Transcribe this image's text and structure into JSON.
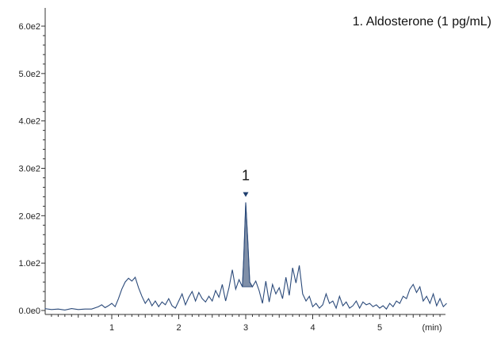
{
  "chart_data": {
    "type": "line",
    "title": "",
    "xlabel": "",
    "ylabel": "",
    "x_unit_label": "(min)",
    "xlim": [
      0,
      6.0
    ],
    "ylim": [
      -10,
      600
    ],
    "x_ticks": [
      1,
      2,
      3,
      4,
      5
    ],
    "x_tick_labels": [
      "1",
      "2",
      "3",
      "4",
      "5"
    ],
    "y_ticks": [
      0,
      100,
      200,
      300,
      400,
      500,
      600
    ],
    "y_tick_labels": [
      "0.0e0",
      "1.0e2",
      "2.0e2",
      "3.0e2",
      "4.0e2",
      "5.0e2",
      "6.0e2"
    ],
    "annotation": "1. Aldosterone (1 pg/mL)",
    "colors": {
      "line": "#2b4a7a",
      "peak_fill": "#7f8fa8",
      "marker": "#1f3f6e"
    },
    "series": [
      {
        "x": [
          0.0,
          0.1,
          0.2,
          0.3,
          0.4,
          0.5,
          0.6,
          0.7,
          0.8,
          0.85,
          0.9,
          0.95,
          1.0,
          1.05,
          1.1,
          1.15,
          1.2,
          1.25,
          1.3,
          1.35,
          1.4,
          1.45,
          1.5,
          1.55,
          1.6,
          1.65,
          1.7,
          1.75,
          1.8,
          1.85,
          1.9,
          1.95,
          2.0,
          2.05,
          2.1,
          2.15,
          2.2,
          2.25,
          2.3,
          2.35,
          2.4,
          2.45,
          2.5,
          2.55,
          2.6,
          2.65,
          2.7,
          2.75,
          2.8,
          2.85,
          2.9,
          2.95,
          2.97,
          3.0,
          3.03,
          3.06,
          3.1,
          3.15,
          3.2,
          3.25,
          3.3,
          3.35,
          3.4,
          3.45,
          3.5,
          3.55,
          3.6,
          3.65,
          3.7,
          3.75,
          3.8,
          3.85,
          3.9,
          3.95,
          4.0,
          4.05,
          4.1,
          4.15,
          4.2,
          4.25,
          4.3,
          4.35,
          4.4,
          4.45,
          4.5,
          4.55,
          4.6,
          4.65,
          4.7,
          4.75,
          4.8,
          4.85,
          4.9,
          4.95,
          5.0,
          5.05,
          5.1,
          5.15,
          5.2,
          5.25,
          5.3,
          5.35,
          5.4,
          5.45,
          5.5,
          5.55,
          5.6,
          5.65,
          5.7,
          5.75,
          5.8,
          5.85,
          5.9,
          5.95,
          6.0
        ],
        "y": [
          4,
          2,
          3,
          1,
          4,
          2,
          3,
          3,
          8,
          12,
          6,
          10,
          15,
          8,
          25,
          45,
          60,
          68,
          62,
          70,
          48,
          30,
          15,
          25,
          10,
          20,
          8,
          18,
          12,
          25,
          10,
          5,
          20,
          35,
          12,
          28,
          40,
          20,
          38,
          25,
          18,
          30,
          20,
          42,
          28,
          55,
          20,
          48,
          86,
          45,
          65,
          50,
          110,
          228,
          150,
          60,
          50,
          62,
          42,
          15,
          62,
          18,
          55,
          35,
          48,
          25,
          70,
          32,
          90,
          58,
          95,
          35,
          20,
          30,
          8,
          15,
          5,
          12,
          35,
          15,
          20,
          5,
          30,
          10,
          18,
          5,
          10,
          20,
          5,
          18,
          12,
          15,
          8,
          12,
          5,
          10,
          3,
          15,
          8,
          20,
          15,
          30,
          25,
          45,
          55,
          38,
          50,
          20,
          30,
          15,
          35,
          10,
          25,
          8,
          15
        ]
      }
    ],
    "peak": {
      "x": 3.0,
      "y": 228,
      "label": "1",
      "x_start": 2.95,
      "x_end": 3.1
    }
  }
}
